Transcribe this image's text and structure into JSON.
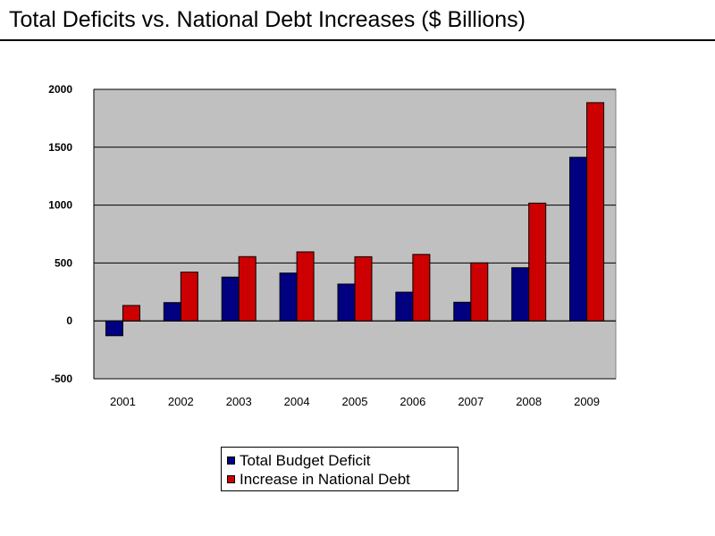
{
  "page": {
    "title": "Total Deficits vs. National Debt Increases ($ Billions)"
  },
  "chart_data": {
    "type": "bar",
    "title": "",
    "xlabel": "",
    "ylabel": "",
    "categories": [
      "2001",
      "2002",
      "2003",
      "2004",
      "2005",
      "2006",
      "2007",
      "2008",
      "2009"
    ],
    "series": [
      {
        "name": "Total Budget Deficit",
        "color": "#000080",
        "values": [
          -128,
          158,
          378,
          413,
          318,
          248,
          161,
          459,
          1413
        ]
      },
      {
        "name": "Increase in National Debt",
        "color": "#cc0000",
        "values": [
          133,
          421,
          555,
          596,
          554,
          574,
          501,
          1017,
          1885
        ]
      }
    ],
    "ylim": [
      -500,
      2000
    ],
    "yticks": [
      2000,
      1500,
      1000,
      500,
      0,
      -500
    ],
    "plot_background": "#c0c0c0",
    "grid": true,
    "legend_position": "bottom-center"
  }
}
